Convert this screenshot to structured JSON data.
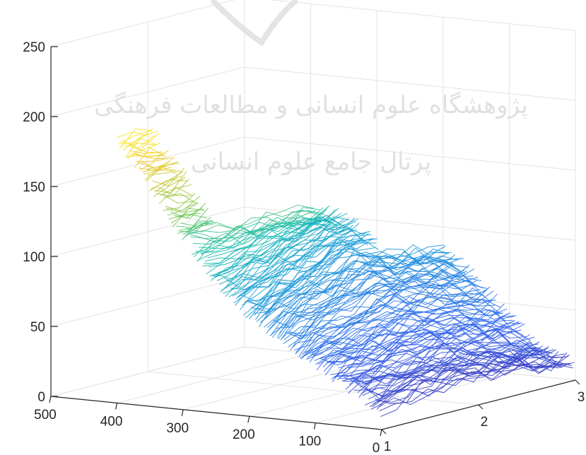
{
  "watermark": {
    "line1": "پژوهشگاه علوم انسانی و مطالعات فرهنگی",
    "line2": "پرتال جامع علوم انسانی"
  },
  "chart_data": {
    "type": "surface3d",
    "title": "",
    "xlabel": "",
    "ylabel": "",
    "zlabel": "",
    "grid": true,
    "colormap": "parula",
    "z_ticks": [
      0,
      50,
      100,
      150,
      200,
      250
    ],
    "z_tick_labels": [
      "0",
      "50",
      "100",
      "150",
      "200",
      "250"
    ],
    "x_ticks": [
      500,
      400,
      300,
      200,
      100,
      0
    ],
    "x_tick_labels": [
      "500",
      "400",
      "300",
      "200",
      "100",
      "0"
    ],
    "y_ticks": [
      1,
      2,
      3
    ],
    "y_tick_labels": [
      "1",
      "2",
      "3"
    ],
    "xlim": [
      0,
      500
    ],
    "ylim": [
      1,
      3
    ],
    "zlim": [
      0,
      250
    ],
    "surface_profile": {
      "x": [
        400,
        350,
        300,
        250,
        200,
        150,
        100,
        50,
        0
      ],
      "z_at_y1": [
        190,
        160,
        125,
        95,
        75,
        60,
        45,
        30,
        15
      ],
      "z_at_y2": [
        null,
        null,
        120,
        115,
        100,
        80,
        55,
        35,
        20
      ],
      "z_at_y3": [
        null,
        null,
        null,
        null,
        85,
        65,
        40,
        20,
        10
      ]
    }
  }
}
